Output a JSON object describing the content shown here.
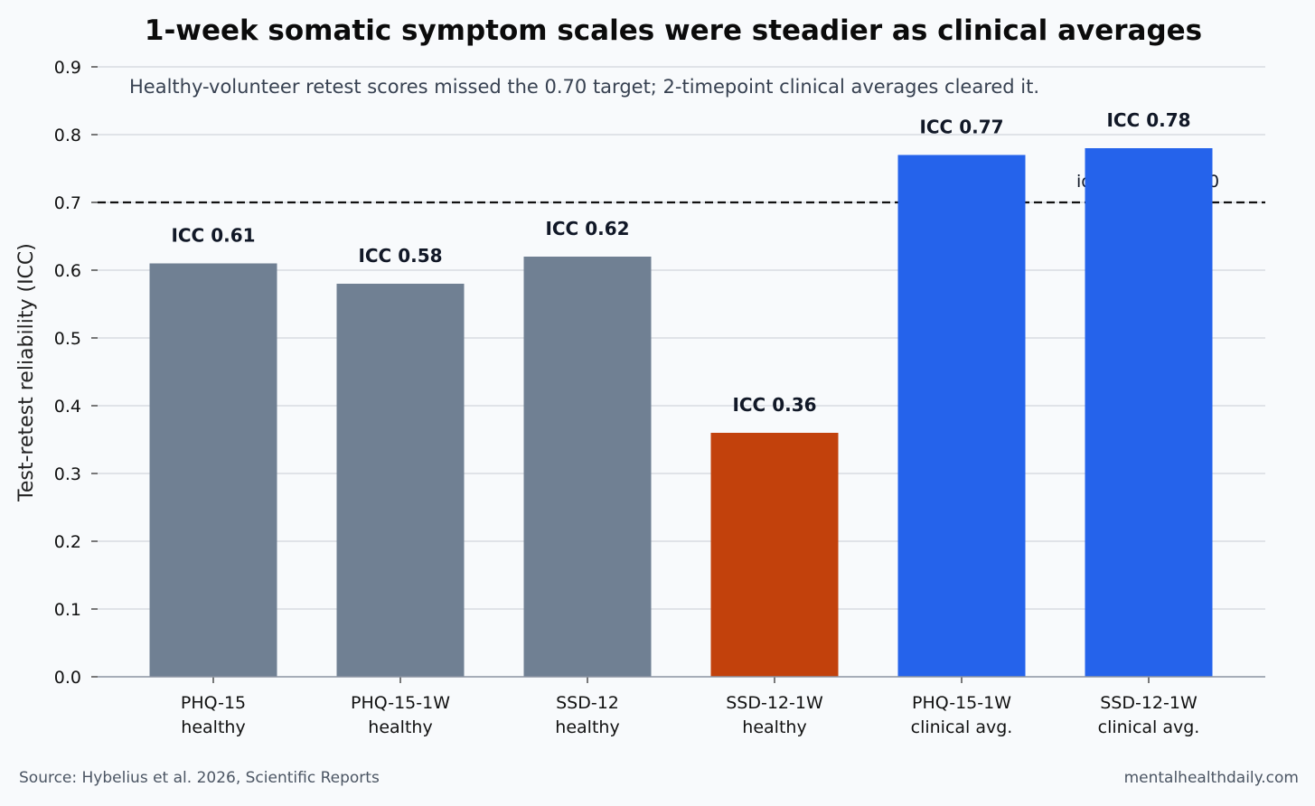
{
  "chart_data": {
    "type": "bar",
    "title": "1-week somatic symptom scales were steadier as clinical averages",
    "subtitle": "Healthy-volunteer retest scores missed the 0.70 target; 2-timepoint clinical averages cleared it.",
    "ylabel": "Test-retest reliability (ICC)",
    "xlabel": "",
    "ylim": [
      0,
      0.9
    ],
    "yticks": [
      "0.0",
      "0.1",
      "0.2",
      "0.3",
      "0.4",
      "0.5",
      "0.6",
      "0.7",
      "0.8",
      "0.9"
    ],
    "grid": true,
    "categories": [
      [
        "PHQ-15",
        "healthy"
      ],
      [
        "PHQ-15-1W",
        "healthy"
      ],
      [
        "SSD-12",
        "healthy"
      ],
      [
        "SSD-12-1W",
        "healthy"
      ],
      [
        "PHQ-15-1W",
        "clinical avg."
      ],
      [
        "SSD-12-1W",
        "clinical avg."
      ]
    ],
    "values": [
      0.61,
      0.58,
      0.62,
      0.36,
      0.77,
      0.78
    ],
    "data_labels": [
      "ICC 0.61",
      "ICC 0.58",
      "ICC 0.62",
      "ICC 0.36",
      "ICC 0.77",
      "ICC 0.78"
    ],
    "bar_colors": [
      "#708093",
      "#708093",
      "#708093",
      "#c2410c",
      "#2563eb",
      "#2563eb"
    ],
    "reference_line": {
      "value": 0.7,
      "label": "ideal target 0.70",
      "style": "dashed",
      "color": "#111111"
    }
  },
  "footer": {
    "source": "Source: Hybelius et al. 2026, Scientific Reports",
    "site": "mentalhealthdaily.com"
  },
  "colors": {
    "background": "#f8fafc",
    "grid": "#d1d5db",
    "axis": "#8b93a1"
  }
}
